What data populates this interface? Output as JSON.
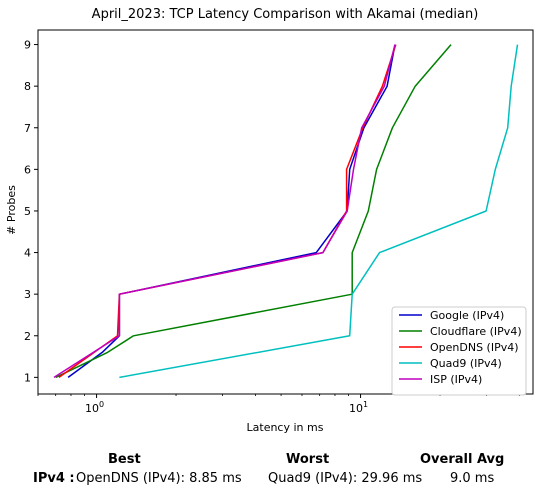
{
  "chart_data": {
    "type": "line",
    "title": "April_2023: TCP Latency Comparison with Akamai (median)",
    "xlabel": "Latency in ms",
    "ylabel": "# Probes",
    "xscale": "log",
    "xlim": [
      0.6,
      45
    ],
    "ylim": [
      0.6,
      9.35
    ],
    "xticks": [
      {
        "value": 1,
        "base": "10",
        "exp": "0"
      },
      {
        "value": 10,
        "base": "10",
        "exp": "1"
      }
    ],
    "yticks": [
      1,
      2,
      3,
      4,
      5,
      6,
      7,
      8,
      9
    ],
    "grid": false,
    "legend_position": "lower-right",
    "series": [
      {
        "name": "Google (IPv4)",
        "color": "#0000cc",
        "points": [
          [
            0.78,
            1
          ],
          [
            1.05,
            1.6
          ],
          [
            1.22,
            2
          ],
          [
            1.22,
            3
          ],
          [
            6.8,
            4
          ],
          [
            8.9,
            5
          ],
          [
            9.1,
            6
          ],
          [
            10.3,
            7
          ],
          [
            12.6,
            8
          ],
          [
            13.5,
            9
          ]
        ]
      },
      {
        "name": "Cloudflare (IPv4)",
        "color": "#008000",
        "points": [
          [
            0.7,
            1
          ],
          [
            1.1,
            1.6
          ],
          [
            1.38,
            2
          ],
          [
            9.3,
            3
          ],
          [
            9.3,
            4
          ],
          [
            10.7,
            5
          ],
          [
            11.5,
            6
          ],
          [
            13.2,
            7
          ],
          [
            16.1,
            8
          ],
          [
            22.0,
            9
          ]
        ]
      },
      {
        "name": "OpenDNS (IPv4)",
        "color": "#ff0000",
        "points": [
          [
            0.72,
            1
          ],
          [
            1.2,
            2
          ],
          [
            1.22,
            3
          ],
          [
            7.2,
            4
          ],
          [
            8.85,
            5
          ],
          [
            8.85,
            6
          ],
          [
            10.2,
            7
          ],
          [
            12.1,
            8
          ],
          [
            13.6,
            9
          ]
        ]
      },
      {
        "name": "Quad9 (IPv4)",
        "color": "#00bfbf",
        "points": [
          [
            1.22,
            1
          ],
          [
            9.1,
            2
          ],
          [
            9.3,
            3
          ],
          [
            11.8,
            4
          ],
          [
            29.9,
            5
          ],
          [
            32.4,
            6
          ],
          [
            36.1,
            7
          ],
          [
            37.2,
            8
          ],
          [
            39.3,
            9
          ]
        ]
      },
      {
        "name": "ISP (IPv4)",
        "color": "#bf00bf",
        "points": [
          [
            0.69,
            1
          ],
          [
            1.22,
            2
          ],
          [
            1.22,
            3
          ],
          [
            7.2,
            4
          ],
          [
            8.9,
            5
          ],
          [
            9.4,
            6
          ],
          [
            10.1,
            7
          ],
          [
            12.3,
            8
          ],
          [
            13.5,
            9
          ]
        ]
      }
    ]
  },
  "stats": {
    "header_best": "Best",
    "header_worst": "Worst",
    "header_avg": "Overall Avg",
    "row_label": "IPv4 :",
    "best": "OpenDNS (IPv4): 8.85 ms",
    "worst": "Quad9 (IPv4): 29.96 ms",
    "avg": "9.0 ms"
  }
}
